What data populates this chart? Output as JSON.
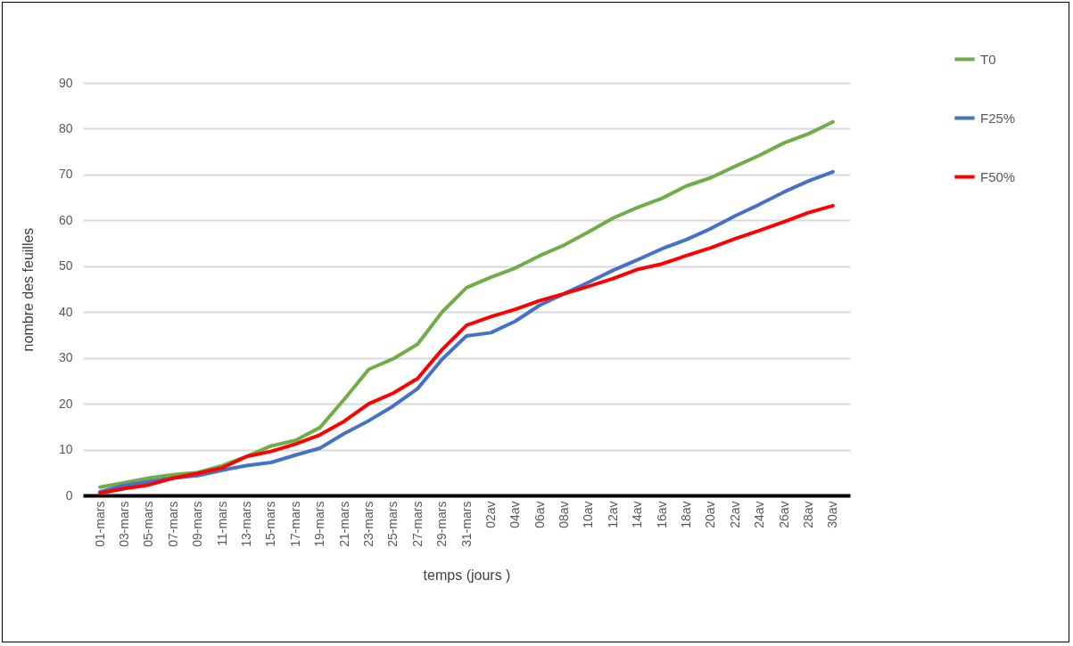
{
  "chart_data": {
    "type": "line",
    "xlabel": "temps   (jours )",
    "ylabel": "nombre des feuilles",
    "categories": [
      "01-mars",
      "03-mars",
      "05-mars",
      "07-mars",
      "09-mars",
      "11-mars",
      "13-mars",
      "15-mars",
      "17-mars",
      "19-mars",
      "21-mars",
      "23-mars",
      "25-mars",
      "27-mars",
      "29-mars",
      "31-mars",
      "02av",
      "04av",
      "06av",
      "08av",
      "10av",
      "12av",
      "14av",
      "16av",
      "18av",
      "20av",
      "22av",
      "24av",
      "26av",
      "28av",
      "30av"
    ],
    "series": [
      {
        "name": "T0",
        "color": "#70ad47",
        "values": [
          1.8,
          2.8,
          3.8,
          4.5,
          5,
          6.5,
          8.5,
          10.8,
          12,
          14.8,
          21,
          27.5,
          29.8,
          33,
          40,
          45.3,
          47.6,
          49.6,
          52.3,
          54.6,
          57.5,
          60.5,
          62.8,
          64.8,
          67.5,
          69.3,
          71.8,
          74.2,
          76.9,
          78.9,
          81.5
        ]
      },
      {
        "name": "F25%",
        "color": "#4472c4",
        "values": [
          0.8,
          2.2,
          3,
          3.8,
          4.3,
          5.5,
          6.5,
          7.2,
          8.8,
          10.3,
          13.5,
          16.3,
          19.5,
          23.3,
          29.7,
          34.8,
          35.5,
          38,
          41.5,
          44,
          46.5,
          49.1,
          51.4,
          53.8,
          55.8,
          58.2,
          61,
          63.5,
          66.2,
          68.6,
          70.6
        ]
      },
      {
        "name": "F50%",
        "color": "#ff0000",
        "values": [
          0.5,
          1.5,
          2.3,
          3.8,
          4.8,
          6,
          8.5,
          9.6,
          11.2,
          13.2,
          16.2,
          20,
          22.3,
          25.5,
          31.8,
          37.1,
          39,
          40.6,
          42.5,
          44,
          45.6,
          47.3,
          49.3,
          50.5,
          52.3,
          54,
          56,
          57.8,
          59.7,
          61.7,
          63.2
        ]
      }
    ],
    "ylim": [
      0,
      90
    ],
    "yticks": [
      0,
      10,
      20,
      30,
      40,
      50,
      60,
      70,
      80,
      90
    ],
    "grid": "y",
    "legend": "top right",
    "marker": "none",
    "line_style": "solid"
  }
}
